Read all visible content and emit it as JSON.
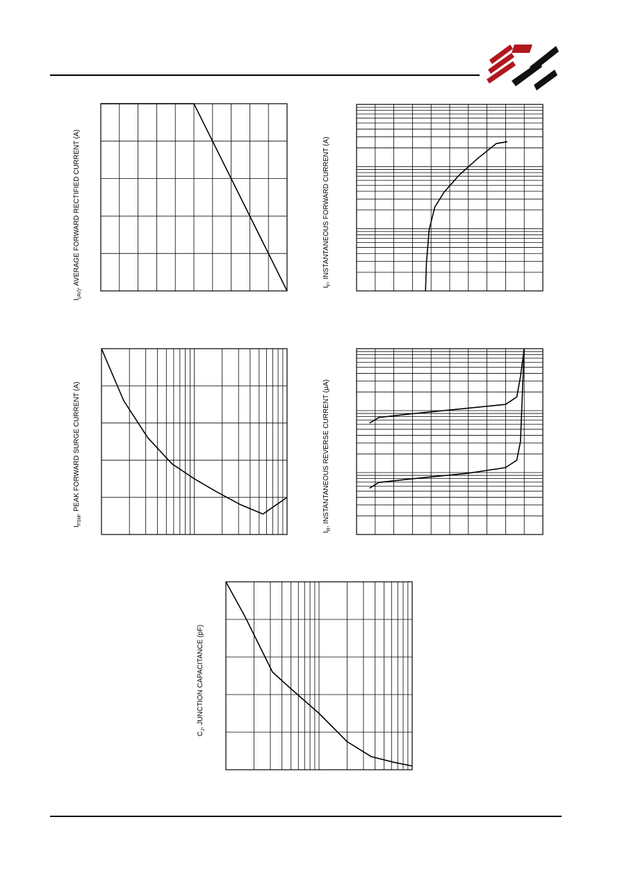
{
  "header": {
    "logo": "NTE"
  },
  "charts": [
    {
      "id": "avg-forward-current",
      "ylabel_prefix": "I",
      "ylabel_sub": "(AV)",
      "ylabel_text": ", AVERAGE FORWARD RECTIFIED CURRENT (A)",
      "xscale": "linear",
      "yscale": "linear",
      "curve": [
        [
          0,
          1
        ],
        [
          0.5,
          1
        ],
        [
          1,
          0
        ]
      ]
    },
    {
      "id": "instantaneous-forward-current",
      "ylabel_prefix": "I",
      "ylabel_sub": "F",
      "ylabel_text": ", INSTANTANEOUS FORWARD CURRENT (A)",
      "xscale": "linear",
      "yscale": "log",
      "curve": [
        [
          0.37,
          0
        ],
        [
          0.375,
          0.15
        ],
        [
          0.39,
          0.33
        ],
        [
          0.42,
          0.45
        ],
        [
          0.47,
          0.53
        ],
        [
          0.55,
          0.62
        ],
        [
          0.65,
          0.71
        ],
        [
          0.75,
          0.79
        ],
        [
          0.81,
          0.8
        ]
      ]
    },
    {
      "id": "peak-forward-surge-current",
      "ylabel_prefix": "I",
      "ylabel_sub": "FSM",
      "ylabel_text": ", PEAK FORWARD SURGE CURRENT (A)",
      "xscale": "log",
      "yscale": "linear",
      "curve": [
        [
          0,
          1
        ],
        [
          0.12,
          0.72
        ],
        [
          0.25,
          0.52
        ],
        [
          0.38,
          0.38
        ],
        [
          0.5,
          0.3
        ],
        [
          0.62,
          0.23
        ],
        [
          0.75,
          0.16
        ],
        [
          0.87,
          0.11
        ],
        [
          1,
          0.2
        ]
      ]
    },
    {
      "id": "instantaneous-reverse-current",
      "ylabel_prefix": "I",
      "ylabel_sub": "R",
      "ylabel_text": ", INSTANTANEOUS REVERSE CURRENT (μA)",
      "xscale": "linear",
      "yscale": "log",
      "series": [
        {
          "curve": [
            [
              0.07,
              0.6
            ],
            [
              0.12,
              0.63
            ],
            [
              0.3,
              0.65
            ],
            [
              0.6,
              0.68
            ],
            [
              0.8,
              0.7
            ],
            [
              0.86,
              0.74
            ],
            [
              0.88,
              0.85
            ],
            [
              0.9,
              1
            ]
          ]
        },
        {
          "curve": [
            [
              0.07,
              0.25
            ],
            [
              0.12,
              0.28
            ],
            [
              0.3,
              0.3
            ],
            [
              0.6,
              0.33
            ],
            [
              0.8,
              0.36
            ],
            [
              0.86,
              0.4
            ],
            [
              0.88,
              0.5
            ],
            [
              0.9,
              1
            ]
          ]
        }
      ]
    },
    {
      "id": "junction-capacitance",
      "ylabel_prefix": "C",
      "ylabel_sub": "J",
      "ylabel_text": ", JUNCTION CAPACITANCE (pF)",
      "xscale": "log",
      "yscale": "linear",
      "curve": [
        [
          0,
          1
        ],
        [
          0.1,
          0.82
        ],
        [
          0.25,
          0.52
        ],
        [
          0.35,
          0.43
        ],
        [
          0.5,
          0.3
        ],
        [
          0.65,
          0.15
        ],
        [
          0.78,
          0.07
        ],
        [
          0.9,
          0.04
        ],
        [
          1,
          0.02
        ]
      ]
    }
  ]
}
